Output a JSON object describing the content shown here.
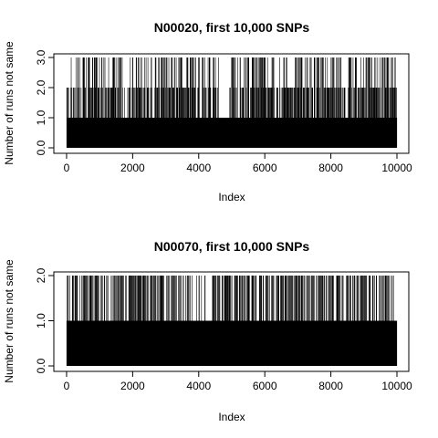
{
  "chart_data": [
    {
      "type": "line",
      "plot_style": "vertical-spikes (type h)",
      "title": "N00020, first 10,000 SNPs",
      "xlabel": "Index",
      "ylabel": "Number of runs not same",
      "xlim": [
        1,
        10000
      ],
      "ylim": [
        0,
        3
      ],
      "x_ticks": [
        0,
        2000,
        4000,
        6000,
        8000,
        10000
      ],
      "x_tick_labels": [
        "0",
        "2000",
        "4000",
        "6000",
        "8000",
        "10000"
      ],
      "y_ticks": [
        0,
        1,
        2,
        3
      ],
      "y_tick_labels": [
        "0.0",
        "1.0",
        "2.0",
        "3.0"
      ],
      "grid": false,
      "n_points": 10000,
      "value_profile": [
        {
          "x_range": [
            0,
            50
          ],
          "values": "0-3"
        },
        {
          "x_range": [
            50,
            1700
          ],
          "values": "dense 0-2, frequent 3"
        },
        {
          "x_range": [
            1700,
            1850
          ],
          "values": "mostly 0-1"
        },
        {
          "x_range": [
            1850,
            4600
          ],
          "values": "dense 0-2, frequent 3"
        },
        {
          "x_range": [
            4600,
            4900
          ],
          "values": "mostly 1"
        },
        {
          "x_range": [
            4900,
            10000
          ],
          "values": "dense 0-2, frequent 3"
        }
      ],
      "colors": {
        "line": "#000000"
      }
    },
    {
      "type": "line",
      "plot_style": "vertical-spikes (type h)",
      "title": "N00070, first 10,000 SNPs",
      "xlabel": "Index",
      "ylabel": "Number of runs not same",
      "xlim": [
        1,
        10000
      ],
      "ylim": [
        0,
        2
      ],
      "x_ticks": [
        0,
        2000,
        4000,
        6000,
        8000,
        10000
      ],
      "x_tick_labels": [
        "0",
        "2000",
        "4000",
        "6000",
        "8000",
        "10000"
      ],
      "y_ticks": [
        0,
        1,
        2
      ],
      "y_tick_labels": [
        "0.0",
        "1.0",
        "2.0"
      ],
      "grid": false,
      "n_points": 10000,
      "value_profile": [
        {
          "x_range": [
            0,
            3800
          ],
          "values": "dense 0-2"
        },
        {
          "x_range": [
            3800,
            4200
          ],
          "values": "mostly 0, isolated 1-2"
        },
        {
          "x_range": [
            4200,
            4400
          ],
          "values": "0-1"
        },
        {
          "x_range": [
            4400,
            9900
          ],
          "values": "dense 0-2"
        },
        {
          "x_range": [
            9900,
            10000
          ],
          "values": "0-1"
        }
      ],
      "colors": {
        "line": "#000000"
      }
    }
  ]
}
